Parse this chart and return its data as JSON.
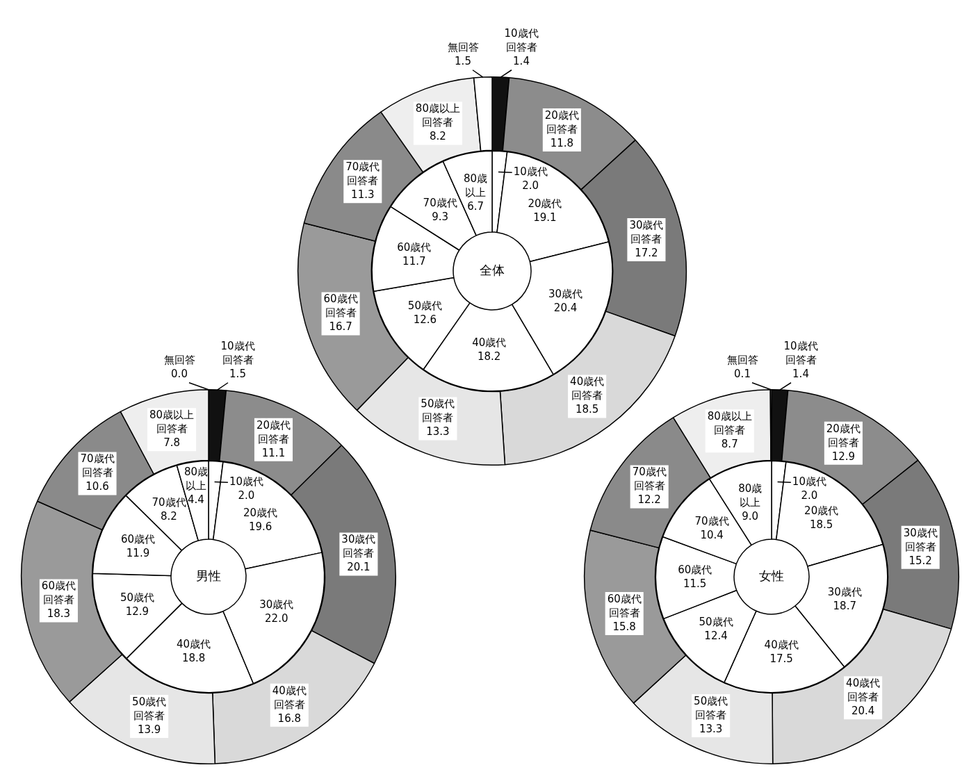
{
  "chart_data": [
    {
      "type": "donut",
      "legend": false,
      "categories": [
        "10歳代回答者",
        "20歳代回答者",
        "30歳代回答者",
        "40歳代回答者",
        "50歳代回答者",
        "60歳代回答者",
        "70歳代回答者",
        "80歳以上回答者",
        "無回答"
      ],
      "values": [
        1.4,
        11.8,
        17.2,
        18.5,
        13.3,
        16.7,
        11.3,
        8.2,
        1.5
      ],
      "value_labels": [
        "1.4",
        "11.8",
        "17.2",
        "18.5",
        "13.3",
        "16.7",
        "11.3",
        "8.2",
        "1.5"
      ],
      "colors": [
        "#111111",
        "#8c8c8c",
        "#7a7a7a",
        "#d9d9d9",
        "#e6e6e6",
        "#9a9a9a",
        "#8a8a8a",
        "#eeeeee",
        "#ffffff"
      ]
    },
    {
      "type": "donut",
      "title": "全体",
      "legend": false,
      "categories": [
        "10歳代",
        "20歳代",
        "30歳代",
        "40歳代",
        "50歳代",
        "60歳代",
        "70歳代",
        "80歳以上"
      ],
      "values": [
        2.0,
        19.1,
        20.4,
        18.2,
        12.6,
        11.7,
        9.3,
        6.7
      ],
      "value_labels": [
        "2.0",
        "19.1",
        "20.4",
        "18.2",
        "12.6",
        "11.7",
        "9.3",
        "6.7"
      ],
      "colors": [
        "#ffffff",
        "#ffffff",
        "#ffffff",
        "#ffffff",
        "#ffffff",
        "#ffffff",
        "#ffffff",
        "#ffffff"
      ]
    },
    {
      "type": "donut",
      "legend": false,
      "categories": [
        "10歳代回答者",
        "20歳代回答者",
        "30歳代回答者",
        "40歳代回答者",
        "50歳代回答者",
        "60歳代回答者",
        "70歳代回答者",
        "80歳以上回答者",
        "無回答"
      ],
      "values": [
        1.5,
        11.1,
        20.1,
        16.8,
        13.9,
        18.3,
        10.6,
        7.8,
        0.0
      ],
      "value_labels": [
        "1.5",
        "11.1",
        "20.1",
        "16.8",
        "13.9",
        "18.3",
        "10.6",
        "7.8",
        "0.0"
      ],
      "colors": [
        "#111111",
        "#8c8c8c",
        "#7a7a7a",
        "#d9d9d9",
        "#e6e6e6",
        "#9a9a9a",
        "#8a8a8a",
        "#eeeeee",
        "#ffffff"
      ]
    },
    {
      "type": "donut",
      "title": "男性",
      "legend": false,
      "categories": [
        "10歳代",
        "20歳代",
        "30歳代",
        "40歳代",
        "50歳代",
        "60歳代",
        "70歳代",
        "80歳以上"
      ],
      "values": [
        2.0,
        19.6,
        22.0,
        18.8,
        12.9,
        11.9,
        8.2,
        4.4
      ],
      "value_labels": [
        "2.0",
        "19.6",
        "22.0",
        "18.8",
        "12.9",
        "11.9",
        "8.2",
        "4.4"
      ],
      "colors": [
        "#ffffff",
        "#ffffff",
        "#ffffff",
        "#ffffff",
        "#ffffff",
        "#ffffff",
        "#ffffff",
        "#ffffff"
      ]
    },
    {
      "type": "donut",
      "legend": false,
      "categories": [
        "10歳代回答者",
        "20歳代回答者",
        "30歳代回答者",
        "40歳代回答者",
        "50歳代回答者",
        "60歳代回答者",
        "70歳代回答者",
        "80歳以上回答者",
        "無回答"
      ],
      "values": [
        1.4,
        12.9,
        15.2,
        20.4,
        13.3,
        15.8,
        12.2,
        8.7,
        0.1
      ],
      "value_labels": [
        "1.4",
        "12.9",
        "15.2",
        "20.4",
        "13.3",
        "15.8",
        "12.2",
        "8.7",
        "0.1"
      ],
      "colors": [
        "#111111",
        "#8c8c8c",
        "#7a7a7a",
        "#d9d9d9",
        "#e6e6e6",
        "#9a9a9a",
        "#8a8a8a",
        "#eeeeee",
        "#ffffff"
      ]
    },
    {
      "type": "donut",
      "title": "女性",
      "legend": false,
      "categories": [
        "10歳代",
        "20歳代",
        "30歳代",
        "40歳代",
        "50歳代",
        "60歳代",
        "70歳代",
        "80歳以上"
      ],
      "values": [
        2.0,
        18.5,
        18.7,
        17.5,
        12.4,
        11.5,
        10.4,
        9.0
      ],
      "value_labels": [
        "2.0",
        "18.5",
        "18.7",
        "17.5",
        "12.4",
        "11.5",
        "10.4",
        "9.0"
      ],
      "colors": [
        "#ffffff",
        "#ffffff",
        "#ffffff",
        "#ffffff",
        "#ffffff",
        "#ffffff",
        "#ffffff",
        "#ffffff"
      ]
    }
  ]
}
